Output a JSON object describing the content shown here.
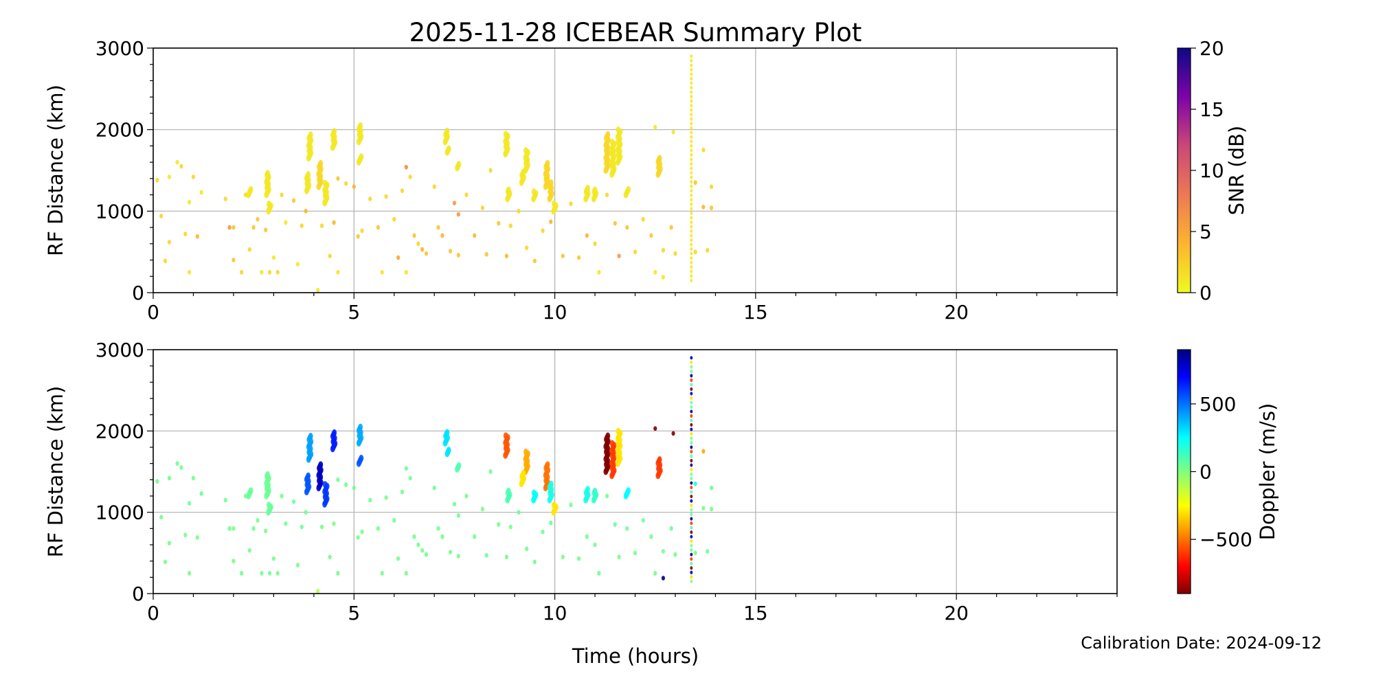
{
  "chart_data": {
    "type": "scatter",
    "title": "2025-11-28 ICEBEAR Summary Plot",
    "xlabel": "Time (hours)",
    "footnote": "Calibration Date: 2024-09-12",
    "xlim": [
      0,
      24
    ],
    "xticks": [
      0,
      5,
      10,
      15,
      20
    ],
    "grid": true,
    "panels": [
      {
        "name": "snr",
        "ylabel": "RF Distance (km)",
        "ylim": [
          0,
          3000
        ],
        "yticks": [
          0,
          1000,
          2000,
          3000
        ],
        "color_by": "snr",
        "colorbar": {
          "label": "SNR (dB)",
          "colormap": "plasma_r",
          "range": [
            0,
            20
          ],
          "ticks": [
            0,
            5,
            10,
            15,
            20
          ]
        }
      },
      {
        "name": "doppler",
        "ylabel": "RF Distance (km)",
        "ylim": [
          0,
          3000
        ],
        "yticks": [
          0,
          1000,
          2000,
          3000
        ],
        "color_by": "doppler",
        "colorbar": {
          "label": "Doppler (m/s)",
          "colormap": "jet",
          "range": [
            -900,
            900
          ],
          "ticks": [
            -500,
            0,
            500
          ],
          "tick_labels": [
            "−500",
            "0",
            "500"
          ]
        }
      }
    ],
    "point_columns": [
      "time_h",
      "range_km",
      "snr_db",
      "doppler_ms"
    ],
    "points": [
      [
        0.1,
        1380,
        2,
        20
      ],
      [
        0.2,
        940,
        2,
        30
      ],
      [
        0.3,
        390,
        2,
        10
      ],
      [
        0.4,
        1420,
        1,
        40
      ],
      [
        0.4,
        620,
        2,
        20
      ],
      [
        0.6,
        1600,
        1,
        30
      ],
      [
        0.7,
        1550,
        2,
        20
      ],
      [
        0.8,
        720,
        2,
        10
      ],
      [
        0.9,
        250,
        1,
        20
      ],
      [
        0.9,
        1110,
        1,
        40
      ],
      [
        1.0,
        1420,
        2,
        30
      ],
      [
        1.1,
        690,
        4,
        20
      ],
      [
        1.2,
        1230,
        1,
        40
      ],
      [
        1.8,
        1150,
        2,
        20
      ],
      [
        1.9,
        800,
        6,
        30
      ],
      [
        2.0,
        400,
        3,
        20
      ],
      [
        2.0,
        800,
        3,
        10
      ],
      [
        2.2,
        250,
        2,
        30
      ],
      [
        2.3,
        1200,
        2,
        20
      ],
      [
        2.4,
        530,
        2,
        20
      ],
      [
        2.5,
        800,
        3,
        40
      ],
      [
        2.6,
        900,
        3,
        30
      ],
      [
        2.7,
        250,
        1,
        20
      ],
      [
        2.8,
        770,
        3,
        10
      ],
      [
        2.9,
        250,
        2,
        30
      ],
      [
        3.0,
        430,
        1,
        20
      ],
      [
        3.1,
        250,
        2,
        20
      ],
      [
        3.2,
        1200,
        2,
        30
      ],
      [
        3.3,
        860,
        1,
        20
      ],
      [
        3.5,
        1130,
        3,
        30
      ],
      [
        3.6,
        350,
        1,
        20
      ],
      [
        3.7,
        820,
        2,
        40
      ],
      [
        3.8,
        1000,
        4,
        30
      ],
      [
        4.1,
        30,
        1,
        -100
      ],
      [
        4.2,
        820,
        2,
        20
      ],
      [
        4.4,
        450,
        2,
        30
      ],
      [
        4.5,
        860,
        4,
        20
      ],
      [
        4.6,
        1400,
        3,
        20
      ],
      [
        4.6,
        250,
        1,
        30
      ],
      [
        4.8,
        1340,
        2,
        40
      ],
      [
        5.0,
        1300,
        4,
        20
      ],
      [
        5.1,
        690,
        3,
        30
      ],
      [
        5.2,
        760,
        2,
        20
      ],
      [
        5.4,
        1150,
        2,
        30
      ],
      [
        5.6,
        800,
        3,
        20
      ],
      [
        5.7,
        250,
        1,
        30
      ],
      [
        5.8,
        1180,
        2,
        20
      ],
      [
        6.0,
        900,
        2,
        40
      ],
      [
        6.1,
        430,
        5,
        20
      ],
      [
        6.2,
        1250,
        2,
        30
      ],
      [
        6.3,
        1540,
        7,
        40
      ],
      [
        6.3,
        250,
        1,
        20
      ],
      [
        6.4,
        1420,
        2,
        30
      ],
      [
        6.5,
        700,
        3,
        20
      ],
      [
        6.6,
        600,
        2,
        30
      ],
      [
        6.7,
        530,
        4,
        20
      ],
      [
        6.8,
        480,
        3,
        40
      ],
      [
        7.0,
        1300,
        2,
        30
      ],
      [
        7.1,
        800,
        3,
        20
      ],
      [
        7.2,
        700,
        4,
        30
      ],
      [
        7.4,
        510,
        3,
        20
      ],
      [
        7.5,
        1100,
        6,
        40
      ],
      [
        7.6,
        460,
        3,
        20
      ],
      [
        7.6,
        960,
        6,
        30
      ],
      [
        7.8,
        1200,
        2,
        20
      ],
      [
        8.0,
        700,
        4,
        30
      ],
      [
        8.2,
        1040,
        2,
        20
      ],
      [
        8.3,
        470,
        3,
        30
      ],
      [
        8.4,
        1500,
        2,
        40
      ],
      [
        8.6,
        850,
        3,
        20
      ],
      [
        8.8,
        450,
        4,
        30
      ],
      [
        8.9,
        820,
        2,
        20
      ],
      [
        9.1,
        1000,
        2,
        30
      ],
      [
        9.3,
        550,
        2,
        20
      ],
      [
        9.5,
        390,
        3,
        30
      ],
      [
        9.7,
        760,
        2,
        20
      ],
      [
        9.9,
        870,
        4,
        40
      ],
      [
        10.2,
        450,
        3,
        20
      ],
      [
        10.4,
        1090,
        2,
        30
      ],
      [
        10.6,
        430,
        3,
        20
      ],
      [
        10.8,
        700,
        4,
        30
      ],
      [
        11.0,
        600,
        2,
        20
      ],
      [
        11.1,
        250,
        1,
        30
      ],
      [
        11.3,
        1200,
        2,
        20
      ],
      [
        11.5,
        850,
        3,
        40
      ],
      [
        11.6,
        450,
        6,
        20
      ],
      [
        11.8,
        800,
        3,
        30
      ],
      [
        12.0,
        500,
        2,
        20
      ],
      [
        12.2,
        900,
        2,
        30
      ],
      [
        12.4,
        700,
        3,
        20
      ],
      [
        12.5,
        250,
        1,
        30
      ],
      [
        12.5,
        2030,
        1,
        -900
      ],
      [
        12.7,
        520,
        2,
        20
      ],
      [
        12.7,
        190,
        1,
        900
      ],
      [
        12.9,
        800,
        3,
        40
      ],
      [
        12.95,
        1970,
        1,
        -900
      ],
      [
        13.0,
        480,
        2,
        20
      ],
      [
        13.5,
        500,
        2,
        30
      ],
      [
        13.5,
        1350,
        3,
        200
      ],
      [
        13.7,
        1050,
        4,
        20
      ],
      [
        13.7,
        1750,
        2,
        -400
      ],
      [
        13.8,
        520,
        2,
        30
      ],
      [
        13.9,
        1300,
        2,
        40
      ],
      [
        13.9,
        1040,
        3,
        20
      ]
    ],
    "cluster_columns": [
      "time_h",
      "range_min_km",
      "range_max_km",
      "snr_db",
      "doppler_ms"
    ],
    "clusters": [
      [
        2.4,
        1200,
        1280,
        1,
        50
      ],
      [
        2.85,
        1200,
        1480,
        1,
        40
      ],
      [
        2.9,
        1000,
        1100,
        1,
        50
      ],
      [
        3.85,
        1250,
        1450,
        1,
        550
      ],
      [
        3.9,
        1650,
        1950,
        1,
        420
      ],
      [
        4.15,
        1300,
        1600,
        2,
        800
      ],
      [
        4.3,
        1100,
        1350,
        1,
        600
      ],
      [
        4.5,
        1780,
        1980,
        1,
        650
      ],
      [
        5.15,
        1850,
        2050,
        1,
        400
      ],
      [
        5.15,
        1600,
        1680,
        1,
        550
      ],
      [
        7.3,
        1850,
        2000,
        1,
        300
      ],
      [
        7.35,
        1720,
        1780,
        1,
        300
      ],
      [
        7.6,
        1530,
        1580,
        1,
        100
      ],
      [
        8.8,
        1700,
        1950,
        1,
        -550
      ],
      [
        8.85,
        1150,
        1280,
        1,
        100
      ],
      [
        9.3,
        1500,
        1750,
        1,
        -400
      ],
      [
        9.2,
        1350,
        1500,
        1,
        -300
      ],
      [
        9.5,
        1150,
        1250,
        1,
        250
      ],
      [
        9.8,
        1300,
        1600,
        2,
        -500
      ],
      [
        9.9,
        1150,
        1350,
        2,
        200
      ],
      [
        10.0,
        1000,
        1100,
        1,
        -300
      ],
      [
        10.8,
        1150,
        1300,
        1,
        200
      ],
      [
        11.0,
        1150,
        1280,
        1,
        150
      ],
      [
        11.3,
        1500,
        1950,
        2,
        -900
      ],
      [
        11.45,
        1450,
        1850,
        1,
        -600
      ],
      [
        11.6,
        1600,
        2000,
        1,
        -300
      ],
      [
        11.8,
        1200,
        1280,
        1,
        250
      ],
      [
        12.6,
        1450,
        1650,
        2,
        -600
      ],
      [
        13.4,
        150,
        2950,
        1,
        0
      ]
    ]
  }
}
